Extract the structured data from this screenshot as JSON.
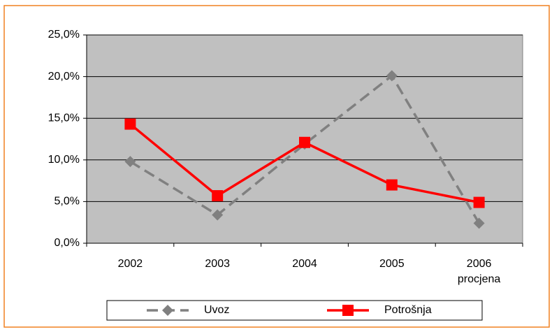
{
  "chart_data": {
    "type": "line",
    "categories": [
      "2002",
      "2003",
      "2004",
      "2005",
      "2006 procjena"
    ],
    "series": [
      {
        "name": "Uvoz",
        "color": "#808080",
        "values": [
          9.8,
          3.4,
          11.9,
          20.1,
          2.4
        ]
      },
      {
        "name": "Potrošnja",
        "color": "#ff0000",
        "values": [
          14.3,
          5.7,
          12.1,
          7.0,
          4.9
        ]
      }
    ],
    "ylim": [
      0,
      25
    ],
    "yticks": [
      {
        "value": 0,
        "label": "0,0%"
      },
      {
        "value": 5,
        "label": "5,0%"
      },
      {
        "value": 10,
        "label": "10,0%"
      },
      {
        "value": 15,
        "label": "15,0%"
      },
      {
        "value": 20,
        "label": "20,0%"
      },
      {
        "value": 25,
        "label": "25,0%"
      }
    ],
    "grid": true,
    "legend": "bottom"
  }
}
